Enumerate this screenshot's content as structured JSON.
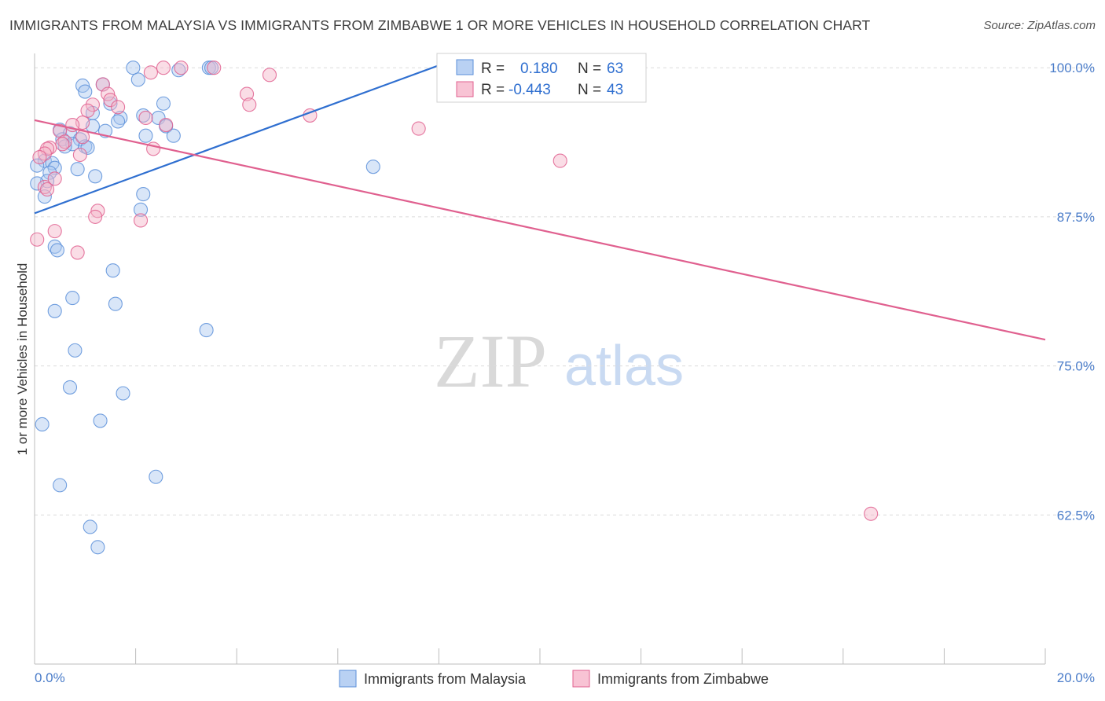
{
  "chart_data": {
    "type": "scatter",
    "title": "IMMIGRANTS FROM MALAYSIA VS IMMIGRANTS FROM ZIMBABWE 1 OR MORE VEHICLES IN HOUSEHOLD CORRELATION CHART",
    "source": "Source: ZipAtlas.com",
    "xlabel": "",
    "ylabel": "1 or more Vehicles in Household",
    "xlim": [
      0,
      20
    ],
    "ylim": [
      50,
      101.2
    ],
    "x_tick_labels": [
      "0.0%",
      "20.0%"
    ],
    "y_ticks": [
      {
        "value": 100.0,
        "label": "100.0%"
      },
      {
        "value": 87.5,
        "label": "87.5%"
      },
      {
        "value": 75.0,
        "label": "75.0%"
      },
      {
        "value": 62.5,
        "label": "62.5%"
      }
    ],
    "watermark": {
      "zip": "ZIP",
      "atlas": "atlas"
    },
    "legend_stats": [
      {
        "r_label": "R =",
        "r_value": "0.180",
        "n_label": "N =",
        "n_value": "63"
      },
      {
        "r_label": "R =",
        "r_value": "-0.443",
        "n_label": "N =",
        "n_value": "43"
      }
    ],
    "series": [
      {
        "name": "Immigrants from Malaysia",
        "color": "#5b8fd9",
        "fill": "#aac8f0",
        "trendline": {
          "x0": 0.0,
          "y0": 87.8,
          "x1": 8.0,
          "y1": 100.2
        },
        "points": [
          [
            1.95,
            100.0
          ],
          [
            3.45,
            100.0
          ],
          [
            3.5,
            100.0
          ],
          [
            2.85,
            99.8
          ],
          [
            2.05,
            99.0
          ],
          [
            0.95,
            98.5
          ],
          [
            1.35,
            98.6
          ],
          [
            1.0,
            98.0
          ],
          [
            1.5,
            97.0
          ],
          [
            2.55,
            97.0
          ],
          [
            1.15,
            96.2
          ],
          [
            2.15,
            96.0
          ],
          [
            1.7,
            95.8
          ],
          [
            1.65,
            95.5
          ],
          [
            2.45,
            95.8
          ],
          [
            2.6,
            95.1
          ],
          [
            1.15,
            95.1
          ],
          [
            0.5,
            94.8
          ],
          [
            1.4,
            94.7
          ],
          [
            0.7,
            94.5
          ],
          [
            2.2,
            94.3
          ],
          [
            2.75,
            94.3
          ],
          [
            0.9,
            94.0
          ],
          [
            0.55,
            94.0
          ],
          [
            0.75,
            93.6
          ],
          [
            1.0,
            93.4
          ],
          [
            0.6,
            93.4
          ],
          [
            1.05,
            93.3
          ],
          [
            0.2,
            92.2
          ],
          [
            0.35,
            92.0
          ],
          [
            0.05,
            91.8
          ],
          [
            0.4,
            91.6
          ],
          [
            0.85,
            91.5
          ],
          [
            6.7,
            91.7
          ],
          [
            0.3,
            91.2
          ],
          [
            1.2,
            90.9
          ],
          [
            0.25,
            90.5
          ],
          [
            0.05,
            90.3
          ],
          [
            2.15,
            89.4
          ],
          [
            0.2,
            89.2
          ],
          [
            2.1,
            88.1
          ],
          [
            0.4,
            85.0
          ],
          [
            0.45,
            84.7
          ],
          [
            1.55,
            83.0
          ],
          [
            0.75,
            80.7
          ],
          [
            1.6,
            80.2
          ],
          [
            0.4,
            79.6
          ],
          [
            3.4,
            78.0
          ],
          [
            0.8,
            76.3
          ],
          [
            0.7,
            73.2
          ],
          [
            1.75,
            72.7
          ],
          [
            0.15,
            70.1
          ],
          [
            1.3,
            70.4
          ],
          [
            2.4,
            65.7
          ],
          [
            0.5,
            65.0
          ],
          [
            1.1,
            61.5
          ],
          [
            1.25,
            59.8
          ]
        ]
      },
      {
        "name": "Immigrants from Zimbabwe",
        "color": "#e0608f",
        "fill": "#f5b3c8",
        "trendline": {
          "x0": 0.0,
          "y0": 95.6,
          "x1": 20.0,
          "y1": 77.2
        },
        "points": [
          [
            2.55,
            100.0
          ],
          [
            2.9,
            100.0
          ],
          [
            3.55,
            100.0
          ],
          [
            2.3,
            99.6
          ],
          [
            4.65,
            99.4
          ],
          [
            1.35,
            98.6
          ],
          [
            1.45,
            97.8
          ],
          [
            4.2,
            97.8
          ],
          [
            1.5,
            97.3
          ],
          [
            1.15,
            96.9
          ],
          [
            4.25,
            96.9
          ],
          [
            1.65,
            96.7
          ],
          [
            1.05,
            96.4
          ],
          [
            5.45,
            96.0
          ],
          [
            2.2,
            95.8
          ],
          [
            0.95,
            95.4
          ],
          [
            0.75,
            95.2
          ],
          [
            2.6,
            95.2
          ],
          [
            7.6,
            94.9
          ],
          [
            0.5,
            94.7
          ],
          [
            0.95,
            94.2
          ],
          [
            0.6,
            93.8
          ],
          [
            0.3,
            93.3
          ],
          [
            0.25,
            93.2
          ],
          [
            0.55,
            93.6
          ],
          [
            2.35,
            93.2
          ],
          [
            0.2,
            92.8
          ],
          [
            0.9,
            92.7
          ],
          [
            0.1,
            92.5
          ],
          [
            10.4,
            92.2
          ],
          [
            0.4,
            90.7
          ],
          [
            0.2,
            90.0
          ],
          [
            0.25,
            89.8
          ],
          [
            1.25,
            88.0
          ],
          [
            1.2,
            87.5
          ],
          [
            2.1,
            87.2
          ],
          [
            0.4,
            86.3
          ],
          [
            0.05,
            85.6
          ],
          [
            0.85,
            84.5
          ],
          [
            16.55,
            62.6
          ]
        ]
      }
    ]
  }
}
